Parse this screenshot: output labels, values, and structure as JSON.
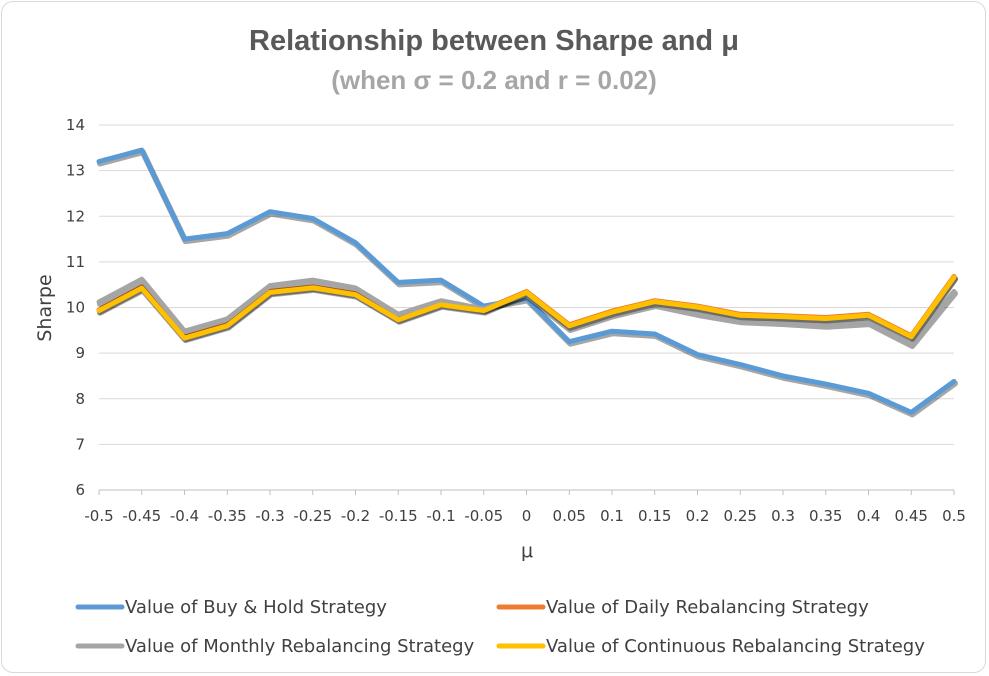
{
  "chart_data": {
    "type": "line",
    "title": "Relationship between Sharpe and μ",
    "subtitle": "(when σ = 0.2 and r = 0.02)",
    "xlabel": "μ",
    "ylabel": "Sharpe",
    "ylim": [
      6,
      14
    ],
    "yticks": [
      "6",
      "7",
      "8",
      "9",
      "10",
      "11",
      "12",
      "13",
      "14"
    ],
    "categories": [
      "-0.5",
      "-0.45",
      "-0.4",
      "-0.35",
      "-0.3",
      "-0.25",
      "-0.2",
      "-0.15",
      "-0.1",
      "-0.05",
      "0",
      "0.05",
      "0.1",
      "0.15",
      "0.2",
      "0.25",
      "0.3",
      "0.35",
      "0.4",
      "0.45",
      "0.5"
    ],
    "grid": true,
    "legend_position": "bottom",
    "series": [
      {
        "name": "Value of Buy & Hold Strategy",
        "color": "#5b9bd5",
        "values": [
          13.2,
          13.45,
          11.5,
          11.62,
          12.1,
          11.95,
          11.42,
          10.55,
          10.6,
          10.03,
          10.2,
          9.25,
          9.48,
          9.42,
          8.97,
          8.75,
          8.5,
          8.32,
          8.12,
          7.7,
          8.38
        ]
      },
      {
        "name": "Value of Daily Rebalancing Strategy",
        "color": "#ed7d31",
        "values": [
          9.95,
          10.45,
          9.35,
          9.62,
          10.35,
          10.45,
          10.3,
          9.75,
          10.08,
          9.95,
          10.35,
          9.62,
          9.92,
          10.15,
          10.03,
          9.85,
          9.82,
          9.78,
          9.85,
          9.38,
          10.68
        ]
      },
      {
        "name": "Value of Monthly Rebalancing Strategy",
        "color": "#a5a5a5",
        "values": [
          10.12,
          10.62,
          9.48,
          9.75,
          10.48,
          10.6,
          10.43,
          9.85,
          10.15,
          9.97,
          10.28,
          9.55,
          9.85,
          10.08,
          9.88,
          9.72,
          9.68,
          9.62,
          9.68,
          9.2,
          10.35
        ]
      },
      {
        "name": "Value of Continuous Rebalancing Strategy",
        "color": "#ffc000",
        "values": [
          9.93,
          10.42,
          9.33,
          9.6,
          10.33,
          10.43,
          10.28,
          9.73,
          10.06,
          9.93,
          10.33,
          9.6,
          9.9,
          10.13,
          10.01,
          9.83,
          9.8,
          9.76,
          9.83,
          9.36,
          10.66
        ]
      }
    ]
  }
}
